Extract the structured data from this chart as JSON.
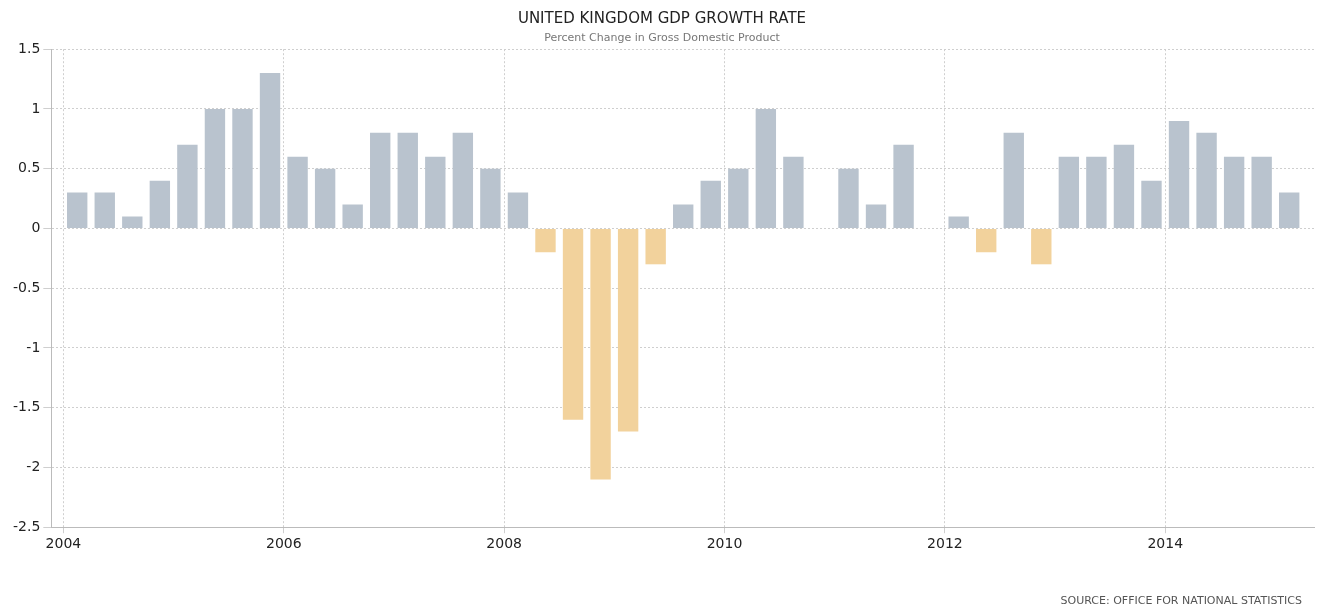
{
  "chart_data": {
    "type": "bar",
    "title": "UNITED KINGDOM GDP GROWTH RATE",
    "subtitle": "Percent Change in Gross Domestic Product",
    "x": [
      2004.125,
      2004.375,
      2004.625,
      2004.875,
      2005.125,
      2005.375,
      2005.625,
      2005.875,
      2006.125,
      2006.375,
      2006.625,
      2006.875,
      2007.125,
      2007.375,
      2007.625,
      2007.875,
      2008.125,
      2008.375,
      2008.625,
      2008.875,
      2009.125,
      2009.375,
      2009.625,
      2009.875,
      2010.125,
      2010.375,
      2010.625,
      2010.875,
      2011.125,
      2011.375,
      2011.625,
      2011.875,
      2012.125,
      2012.375,
      2012.625,
      2012.875,
      2013.125,
      2013.375,
      2013.625,
      2013.875,
      2014.125,
      2014.375,
      2014.625,
      2014.875,
      2015.125
    ],
    "values": [
      0.3,
      0.3,
      0.1,
      0.4,
      0.7,
      1.0,
      1.0,
      1.3,
      0.6,
      0.5,
      0.2,
      0.8,
      0.8,
      0.6,
      0.8,
      0.5,
      0.3,
      -0.2,
      -1.6,
      -2.1,
      -1.7,
      -0.3,
      0.2,
      0.4,
      0.5,
      1.0,
      0.6,
      0,
      0.5,
      0.2,
      0.7,
      0,
      0.1,
      -0.2,
      0.8,
      -0.3,
      0.6,
      0.6,
      0.7,
      0.4,
      0.9,
      0.8,
      0.6,
      0.6,
      0.3
    ],
    "colors": [
      "#b9c3ce",
      "#b9c3ce",
      "#b9c3ce",
      "#b9c3ce",
      "#b9c3ce",
      "#b9c3ce",
      "#b9c3ce",
      "#b9c3ce",
      "#b9c3ce",
      "#b9c3ce",
      "#b9c3ce",
      "#b9c3ce",
      "#b9c3ce",
      "#b9c3ce",
      "#b9c3ce",
      "#b9c3ce",
      "#b9c3ce",
      "#f2d29c",
      "#f2d29c",
      "#f2d29c",
      "#f2d29c",
      "#f2d29c",
      "#b9c3ce",
      "#b9c3ce",
      "#b9c3ce",
      "#b9c3ce",
      "#b9c3ce",
      "#b9c3ce",
      "#b9c3ce",
      "#b9c3ce",
      "#b9c3ce",
      "#b9c3ce",
      "#b9c3ce",
      "#f2d29c",
      "#b9c3ce",
      "#f2d29c",
      "#b9c3ce",
      "#b9c3ce",
      "#b9c3ce",
      "#b9c3ce",
      "#b9c3ce",
      "#b9c3ce",
      "#b9c3ce",
      "#b9c3ce",
      "#b9c3ce"
    ],
    "xlim": [
      2003.89,
      2015.35
    ],
    "xticks": [
      2004,
      2006,
      2008,
      2010,
      2012,
      2014
    ],
    "ylim": [
      -2.5,
      1.5
    ],
    "yticks": [
      -2.5,
      -2,
      -1.5,
      -1,
      -0.5,
      0,
      0.5,
      1,
      1.5
    ],
    "grid": true,
    "legend": false,
    "annotations": [
      "SOURCE: OFFICE FOR NATIONAL STATISTICS"
    ]
  }
}
